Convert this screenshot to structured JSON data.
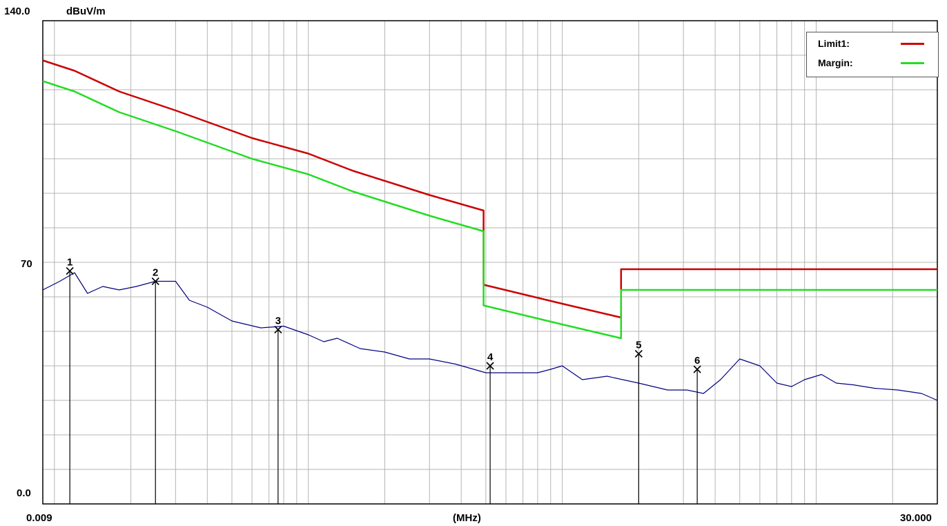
{
  "chart_data": {
    "type": "line",
    "ylabel_top": "140.0",
    "unit": "dBuV/m",
    "y_mid_label": "70",
    "y_bottom_label": "0.0",
    "xlabel": "(MHz)",
    "x_start_label": "0.009",
    "x_end_label": "30.000",
    "xlim": [
      0.009,
      30.0
    ],
    "ylim": [
      0,
      140
    ],
    "x_scale": "log",
    "grid": true,
    "legend": {
      "position": "top-right",
      "entries": [
        {
          "name": "Limit1:",
          "color": "#cc0000"
        },
        {
          "name": "Margin:",
          "color": "#22dd22"
        }
      ]
    },
    "series": [
      {
        "name": "Limit1:",
        "color": "#cc0000",
        "x": [
          0.009,
          0.012,
          0.018,
          0.03,
          0.06,
          0.1,
          0.15,
          0.3,
          0.49,
          0.49,
          1.0,
          1.705,
          1.705,
          30.0
        ],
        "y": [
          128.5,
          125.5,
          119.5,
          114.0,
          106.0,
          101.5,
          96.5,
          89.5,
          85.0,
          63.5,
          58.0,
          54.0,
          68.0,
          68.0
        ]
      },
      {
        "name": "Margin:",
        "color": "#22dd22",
        "x": [
          0.009,
          0.012,
          0.018,
          0.03,
          0.06,
          0.1,
          0.15,
          0.3,
          0.49,
          0.49,
          1.0,
          1.705,
          1.705,
          30.0
        ],
        "y": [
          122.5,
          119.5,
          113.5,
          108.0,
          100.0,
          95.5,
          90.5,
          83.5,
          79.0,
          57.5,
          52.0,
          48.0,
          62.0,
          62.0
        ]
      },
      {
        "name": "",
        "color": "#000080",
        "x": [
          0.009,
          0.0105,
          0.012,
          0.0135,
          0.0155,
          0.018,
          0.021,
          0.025,
          0.03,
          0.034,
          0.04,
          0.05,
          0.065,
          0.08,
          0.1,
          0.115,
          0.13,
          0.16,
          0.2,
          0.25,
          0.3,
          0.38,
          0.5,
          0.65,
          0.8,
          0.9,
          1.0,
          1.2,
          1.5,
          2.0,
          2.6,
          3.1,
          3.6,
          4.2,
          5.0,
          6.0,
          7.0,
          8.0,
          9.0,
          10.5,
          12.0,
          14.0,
          17.0,
          21.0,
          26.0,
          30.0
        ],
        "y": [
          62.0,
          64.5,
          67.0,
          61.0,
          63.0,
          62.0,
          63.0,
          64.5,
          64.5,
          59.0,
          57.0,
          53.0,
          51.0,
          51.5,
          49.0,
          47.0,
          48.0,
          45.0,
          44.0,
          42.0,
          42.0,
          40.5,
          38.0,
          38.0,
          38.0,
          39.0,
          40.0,
          36.0,
          37.0,
          35.0,
          33.0,
          33.0,
          32.0,
          36.0,
          42.0,
          40.0,
          35.0,
          34.0,
          36.0,
          37.5,
          35.0,
          34.5,
          33.5,
          33.0,
          32.0,
          30.0
        ]
      }
    ],
    "markers": [
      {
        "label": "1",
        "x": 0.0115,
        "y": 67.5
      },
      {
        "label": "2",
        "x": 0.025,
        "y": 64.5
      },
      {
        "label": "3",
        "x": 0.076,
        "y": 50.5
      },
      {
        "label": "4",
        "x": 0.52,
        "y": 40.0
      },
      {
        "label": "5",
        "x": 2.0,
        "y": 43.5
      },
      {
        "label": "6",
        "x": 3.4,
        "y": 39.0
      }
    ]
  }
}
